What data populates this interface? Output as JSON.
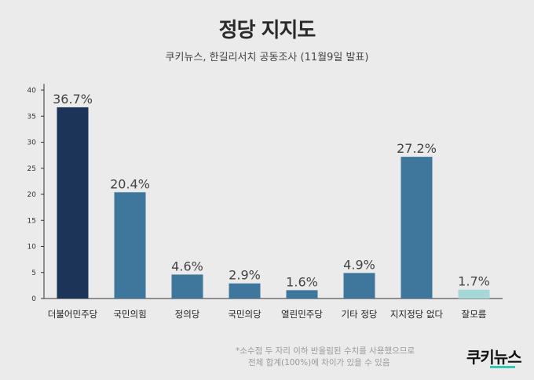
{
  "header": {
    "title": "정당 지지도",
    "subtitle": "쿠키뉴스, 한길리서치 공동조사 (11월9일 발표)"
  },
  "footnote": {
    "line1": "*소수점 두 자리 이하 반올림된 수치를 사용했으므로",
    "line2": "전체 합계(100%)에 차이가 있을 수 있음"
  },
  "logo": {
    "text": "쿠키뉴스"
  },
  "colors": {
    "dark_bar": "#1c3457",
    "mid_bar": "#3f769b",
    "light_bar": "#a6d8d8",
    "axis": "#333333"
  },
  "chart_data": {
    "type": "bar",
    "title": "정당 지지도",
    "categories": [
      "더불어민주당",
      "국민의힘",
      "정의당",
      "국민의당",
      "열린민주당",
      "기타 정당",
      "지지정당 없다",
      "잘모름"
    ],
    "values": [
      36.7,
      20.4,
      4.6,
      2.9,
      1.6,
      4.9,
      27.2,
      1.7
    ],
    "value_labels": [
      "36.7%",
      "20.4%",
      "4.6%",
      "2.9%",
      "1.6%",
      "4.9%",
      "27.2%",
      "1.7%"
    ],
    "bar_colors": [
      "#1c3457",
      "#3f769b",
      "#3f769b",
      "#3f769b",
      "#3f769b",
      "#3f769b",
      "#3f769b",
      "#a6d8d8"
    ],
    "ylim": [
      0,
      40
    ],
    "yticks": [
      0,
      5,
      10,
      15,
      20,
      25,
      30,
      35,
      40
    ],
    "grid": false,
    "legend": "none"
  }
}
